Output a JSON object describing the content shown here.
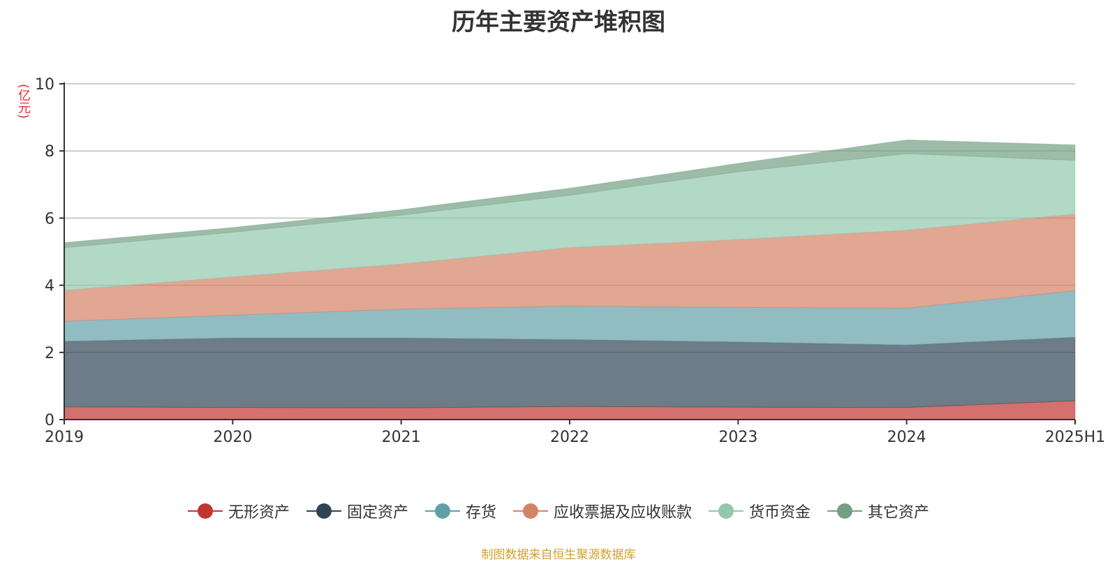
{
  "chart_data": {
    "type": "area",
    "stacked": true,
    "title": "历年主要资产堆积图",
    "unit_label": "(亿元)",
    "categories": [
      "2019",
      "2020",
      "2021",
      "2022",
      "2023",
      "2024",
      "2025H1"
    ],
    "ylim": [
      0,
      10
    ],
    "yticks": [
      0,
      2,
      4,
      6,
      8,
      10
    ],
    "grid": true,
    "legend_position": "bottom",
    "series": [
      {
        "name": "无形资产",
        "color": "#c23531",
        "values": [
          0.38,
          0.36,
          0.35,
          0.39,
          0.37,
          0.36,
          0.56
        ]
      },
      {
        "name": "固定资产",
        "color": "#2f4554",
        "values": [
          1.95,
          2.07,
          2.08,
          1.99,
          1.94,
          1.86,
          1.89
        ]
      },
      {
        "name": "存货",
        "color": "#61a0a8",
        "values": [
          0.6,
          0.68,
          0.86,
          1.0,
          1.03,
          1.1,
          1.39
        ]
      },
      {
        "name": "应收票据及应收账款",
        "color": "#d48265",
        "values": [
          0.92,
          1.14,
          1.34,
          1.74,
          2.02,
          2.32,
          2.28
        ]
      },
      {
        "name": "货币资金",
        "color": "#91c7ae",
        "values": [
          1.27,
          1.33,
          1.46,
          1.56,
          2.02,
          2.28,
          1.6
        ]
      },
      {
        "name": "其它资产",
        "color": "#749f83",
        "values": [
          0.15,
          0.14,
          0.16,
          0.21,
          0.25,
          0.41,
          0.46
        ]
      }
    ]
  },
  "footer": {
    "source": "制图数据来自恒生聚源数据库"
  }
}
